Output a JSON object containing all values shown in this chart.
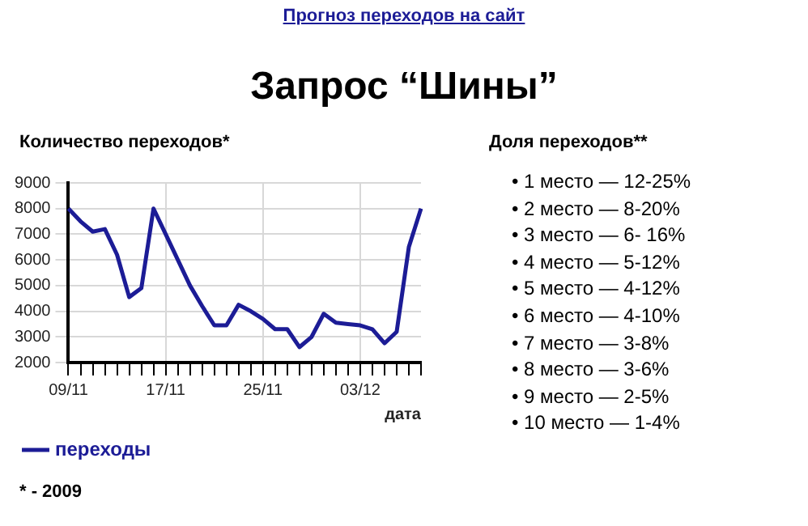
{
  "chart_data": [
    {
      "type": "line",
      "title": "Запрос “Шины”",
      "ylabel": "Количество переходов*",
      "xlabel": "дата",
      "annotations": [
        "Прогноз переходов на сайт",
        "* - 2009"
      ],
      "categories": [
        "09/11",
        null,
        null,
        null,
        null,
        null,
        null,
        null,
        "17/11",
        null,
        null,
        null,
        null,
        null,
        null,
        null,
        "25/11",
        null,
        null,
        null,
        null,
        null,
        null,
        null,
        "03/12",
        null,
        null,
        null,
        null,
        null
      ],
      "series": [
        {
          "name": "переходы",
          "color": "#1c1c96",
          "values": [
            8000,
            7500,
            7100,
            7200,
            6200,
            4550,
            4900,
            8000,
            7000,
            6000,
            5000,
            4200,
            3450,
            3450,
            4250,
            4000,
            3700,
            3300,
            3300,
            2600,
            3000,
            3900,
            3550,
            3500,
            3450,
            3300,
            2750,
            3200,
            6500,
            8000
          ]
        }
      ],
      "ylim": [
        2000,
        9000
      ],
      "yticks": [
        2000,
        3000,
        4000,
        5000,
        6000,
        7000,
        8000,
        9000
      ],
      "grid": true,
      "legend": "bottom",
      "marker": "none",
      "line_style": "solid"
    },
    {
      "type": "other",
      "title": "Доля переходов**",
      "annotations": [
        "• 1 место — 12-25%",
        "• 2 место — 8-20%",
        "• 3 место — 6- 16%",
        "• 4 место — 5-12%",
        "• 5 место — 4-12%",
        "• 6 место — 4-10%",
        "• 7 место — 3-8%",
        "• 8 место — 3-6%",
        "• 9 место — 2-5%",
        "• 10 место — 1-4%"
      ]
    }
  ]
}
